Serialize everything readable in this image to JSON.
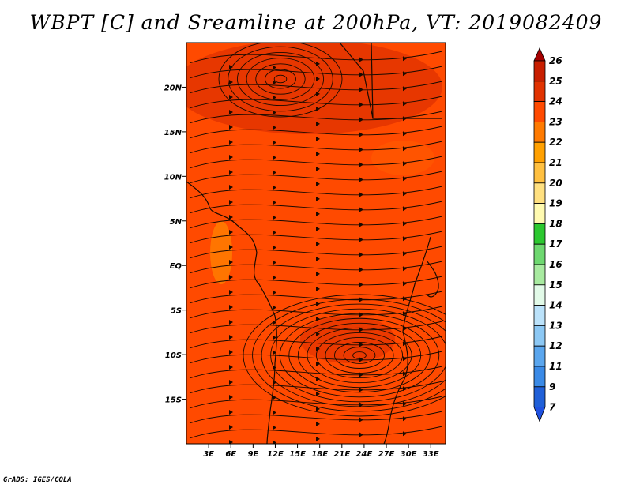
{
  "title": "WBPT [C] and Sreamline at 200hPa, VT: 2019082409",
  "credit": "GrADS: IGES/COLA",
  "map": {
    "lon_range": [
      0,
      35
    ],
    "lat_range": [
      -20,
      25
    ],
    "lon_ticks": [
      "3E",
      "6E",
      "9E",
      "12E",
      "15E",
      "18E",
      "21E",
      "24E",
      "27E",
      "30E",
      "33E"
    ],
    "lat_ticks": [
      "20N",
      "15N",
      "10N",
      "5N",
      "EQ",
      "5S",
      "10S",
      "15S"
    ],
    "background_color": "#ff4400"
  },
  "colorbar": {
    "labels": [
      "26",
      "25",
      "24",
      "23",
      "22",
      "21",
      "20",
      "19",
      "18",
      "17",
      "16",
      "15",
      "14",
      "13",
      "12",
      "11",
      "9",
      "7"
    ],
    "colors": [
      "#a50000",
      "#c81e00",
      "#e13200",
      "#ff4a00",
      "#ff7a00",
      "#ffa000",
      "#ffc040",
      "#ffe080",
      "#fffab0",
      "#2cc830",
      "#6ed870",
      "#a8eaa0",
      "#e2fae8",
      "#bbe2fa",
      "#8cc8f4",
      "#5aa6ee",
      "#3a8ae6",
      "#2060d8",
      "#1f51e0"
    ]
  }
}
